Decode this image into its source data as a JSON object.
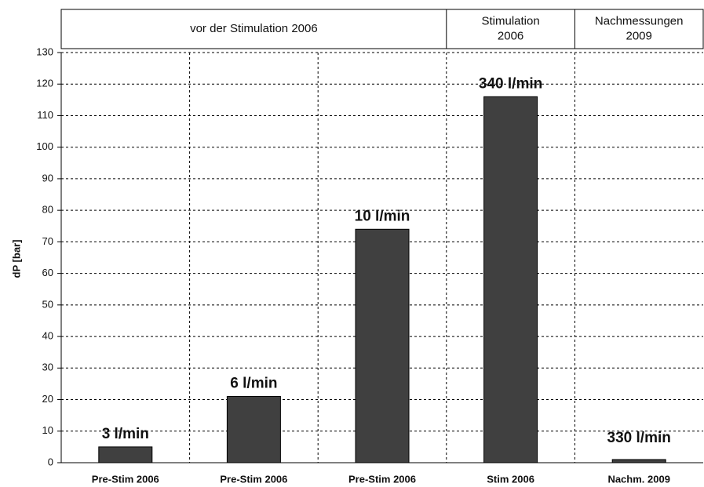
{
  "chart_data": {
    "type": "bar",
    "groups": [
      {
        "label": [
          "vor der Stimulation 2006"
        ]
      },
      {
        "label": [
          "Stimulation",
          "2006"
        ]
      },
      {
        "label": [
          "Nachmessungen",
          "2009"
        ]
      }
    ],
    "categories": [
      "Pre-Stim 2006",
      "Pre-Stim 2006",
      "Pre-Stim 2006",
      "Stim 2006",
      "Nachm. 2009"
    ],
    "values": [
      5,
      21,
      74,
      116,
      1
    ],
    "annotations": [
      "3 l/min",
      "6 l/min",
      "10 l/min",
      "340 l/min",
      "330 l/min"
    ],
    "color": "#404040",
    "ylabel": "dP [bar]",
    "ylim": [
      0,
      130
    ],
    "yticks": [
      0,
      10,
      20,
      30,
      40,
      50,
      60,
      70,
      80,
      90,
      100,
      110,
      120,
      130
    ],
    "grid": true
  }
}
